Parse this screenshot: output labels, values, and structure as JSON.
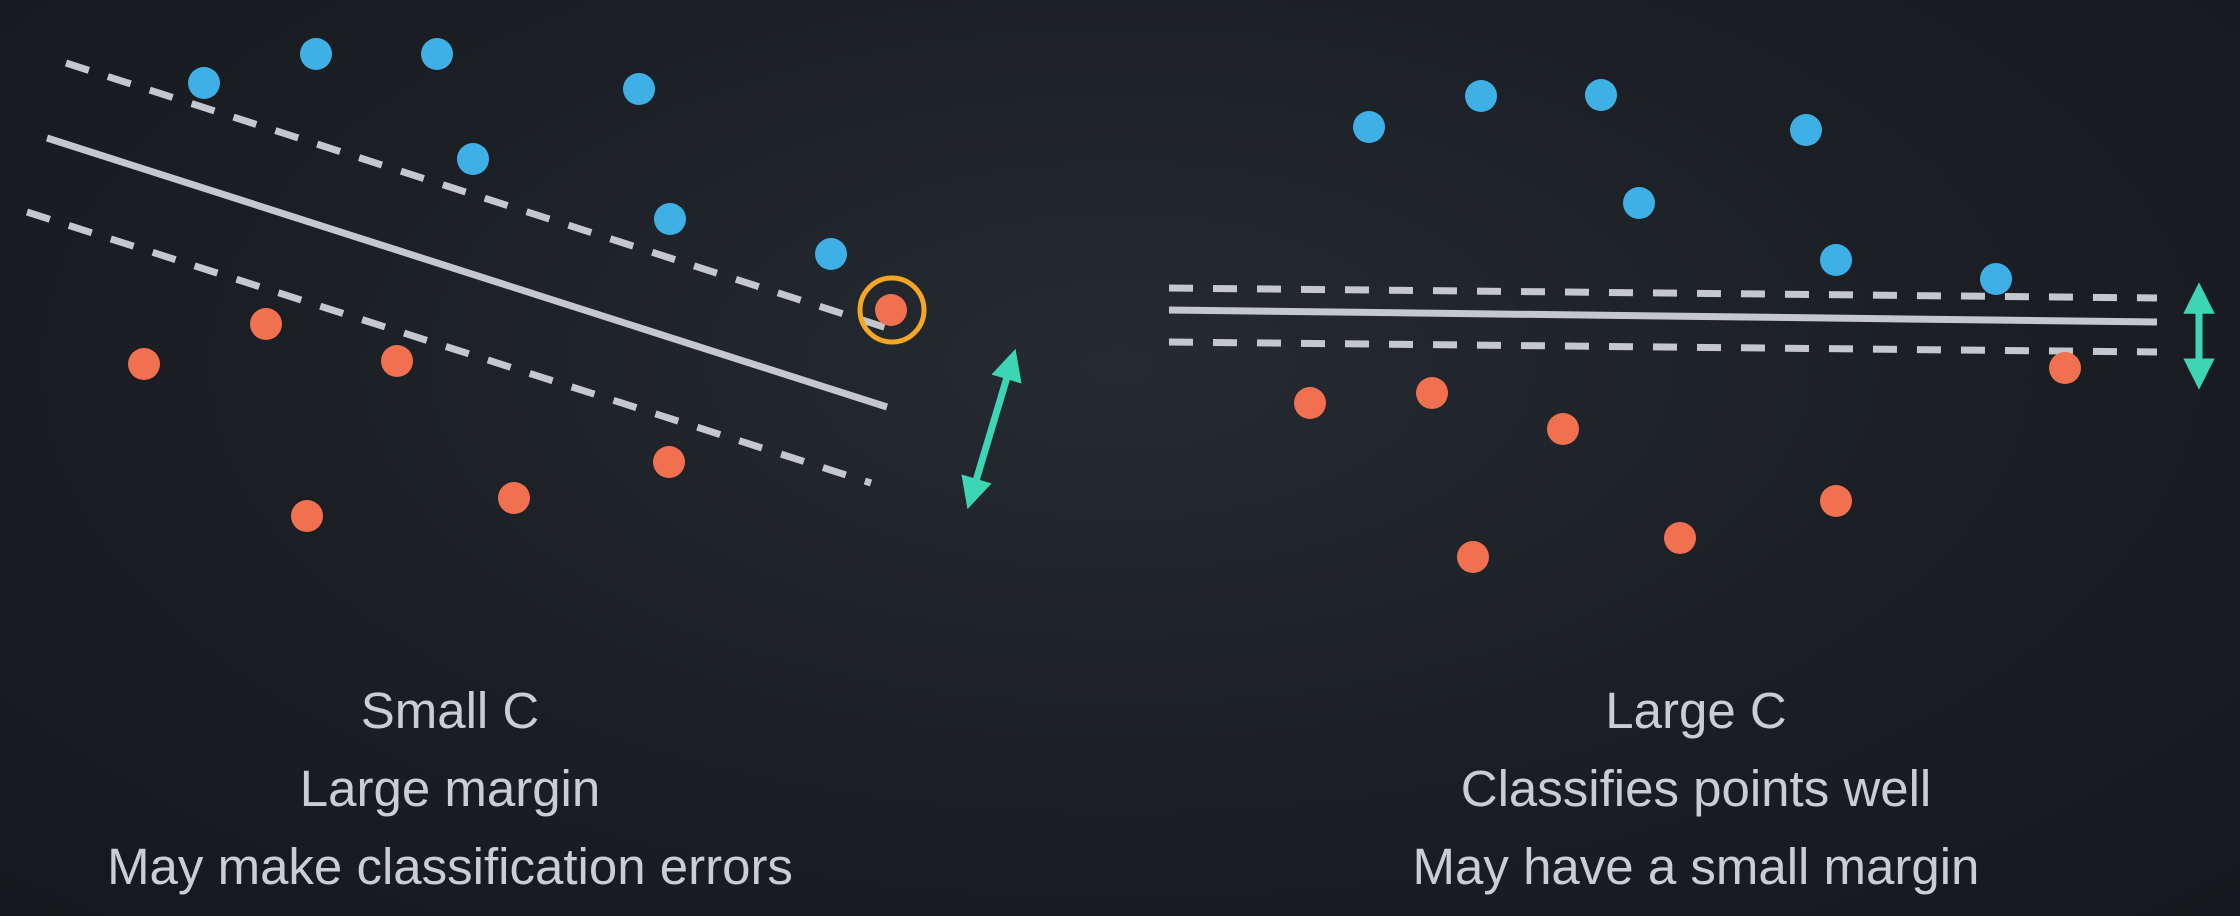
{
  "left_panel": {
    "title": "Small C",
    "line2": "Large margin",
    "line3": "May make classification errors"
  },
  "right_panel": {
    "title": "Large C",
    "line2": "Classifies points well",
    "line3": "May have a small margin"
  },
  "colors": {
    "background": "#1b1f24",
    "blue_points": "#3fb0e6",
    "orange_points": "#f0704f",
    "highlight_ring": "#f5a623",
    "boundary_line": "#c4c8cc",
    "margin_arrow": "#3dd6b4",
    "caption_text": "#c9ced4"
  }
}
